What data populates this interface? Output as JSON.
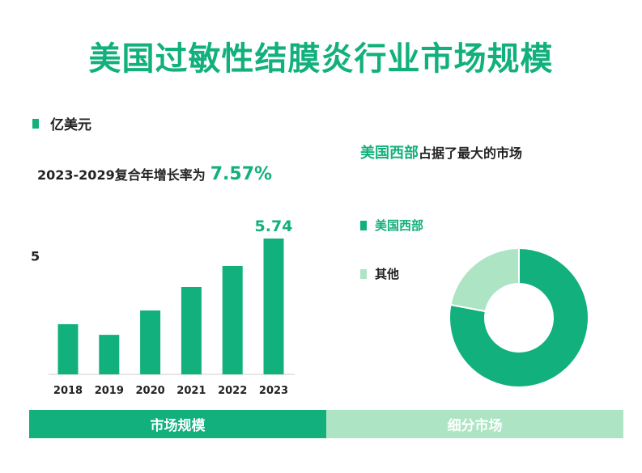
{
  "title": "美国过敏性结膜炎行业市场规模",
  "unit_label": "亿美元",
  "cagr": {
    "label": "2023-2029复合年增长率为",
    "value": "7.57%"
  },
  "right_title": {
    "highlight": "美国西部",
    "rest": "占据了最大的市场"
  },
  "tabs": [
    {
      "label": "市场规模",
      "color": "#12b07c"
    },
    {
      "label": "细分市场",
      "color": "#ade5c4"
    }
  ],
  "colors": {
    "primary": "#12b07c",
    "secondary": "#ade5c4"
  },
  "chart_data": [
    {
      "type": "bar",
      "categories": [
        "2018",
        "2019",
        "2020",
        "2021",
        "2022",
        "2023"
      ],
      "values": [
        2.12,
        1.67,
        2.7,
        3.69,
        4.58,
        5.74
      ],
      "data_labels": {
        "2023": "5.74"
      },
      "y_tick_labels": [
        "5"
      ],
      "ylim": [
        0,
        5.74
      ],
      "grid": false
    },
    {
      "type": "pie",
      "donut": true,
      "labels": [
        "美国西部",
        "其他"
      ],
      "values": [
        78,
        22
      ],
      "colors": [
        "#12b07c",
        "#ade5c4"
      ],
      "legend": "left"
    }
  ]
}
